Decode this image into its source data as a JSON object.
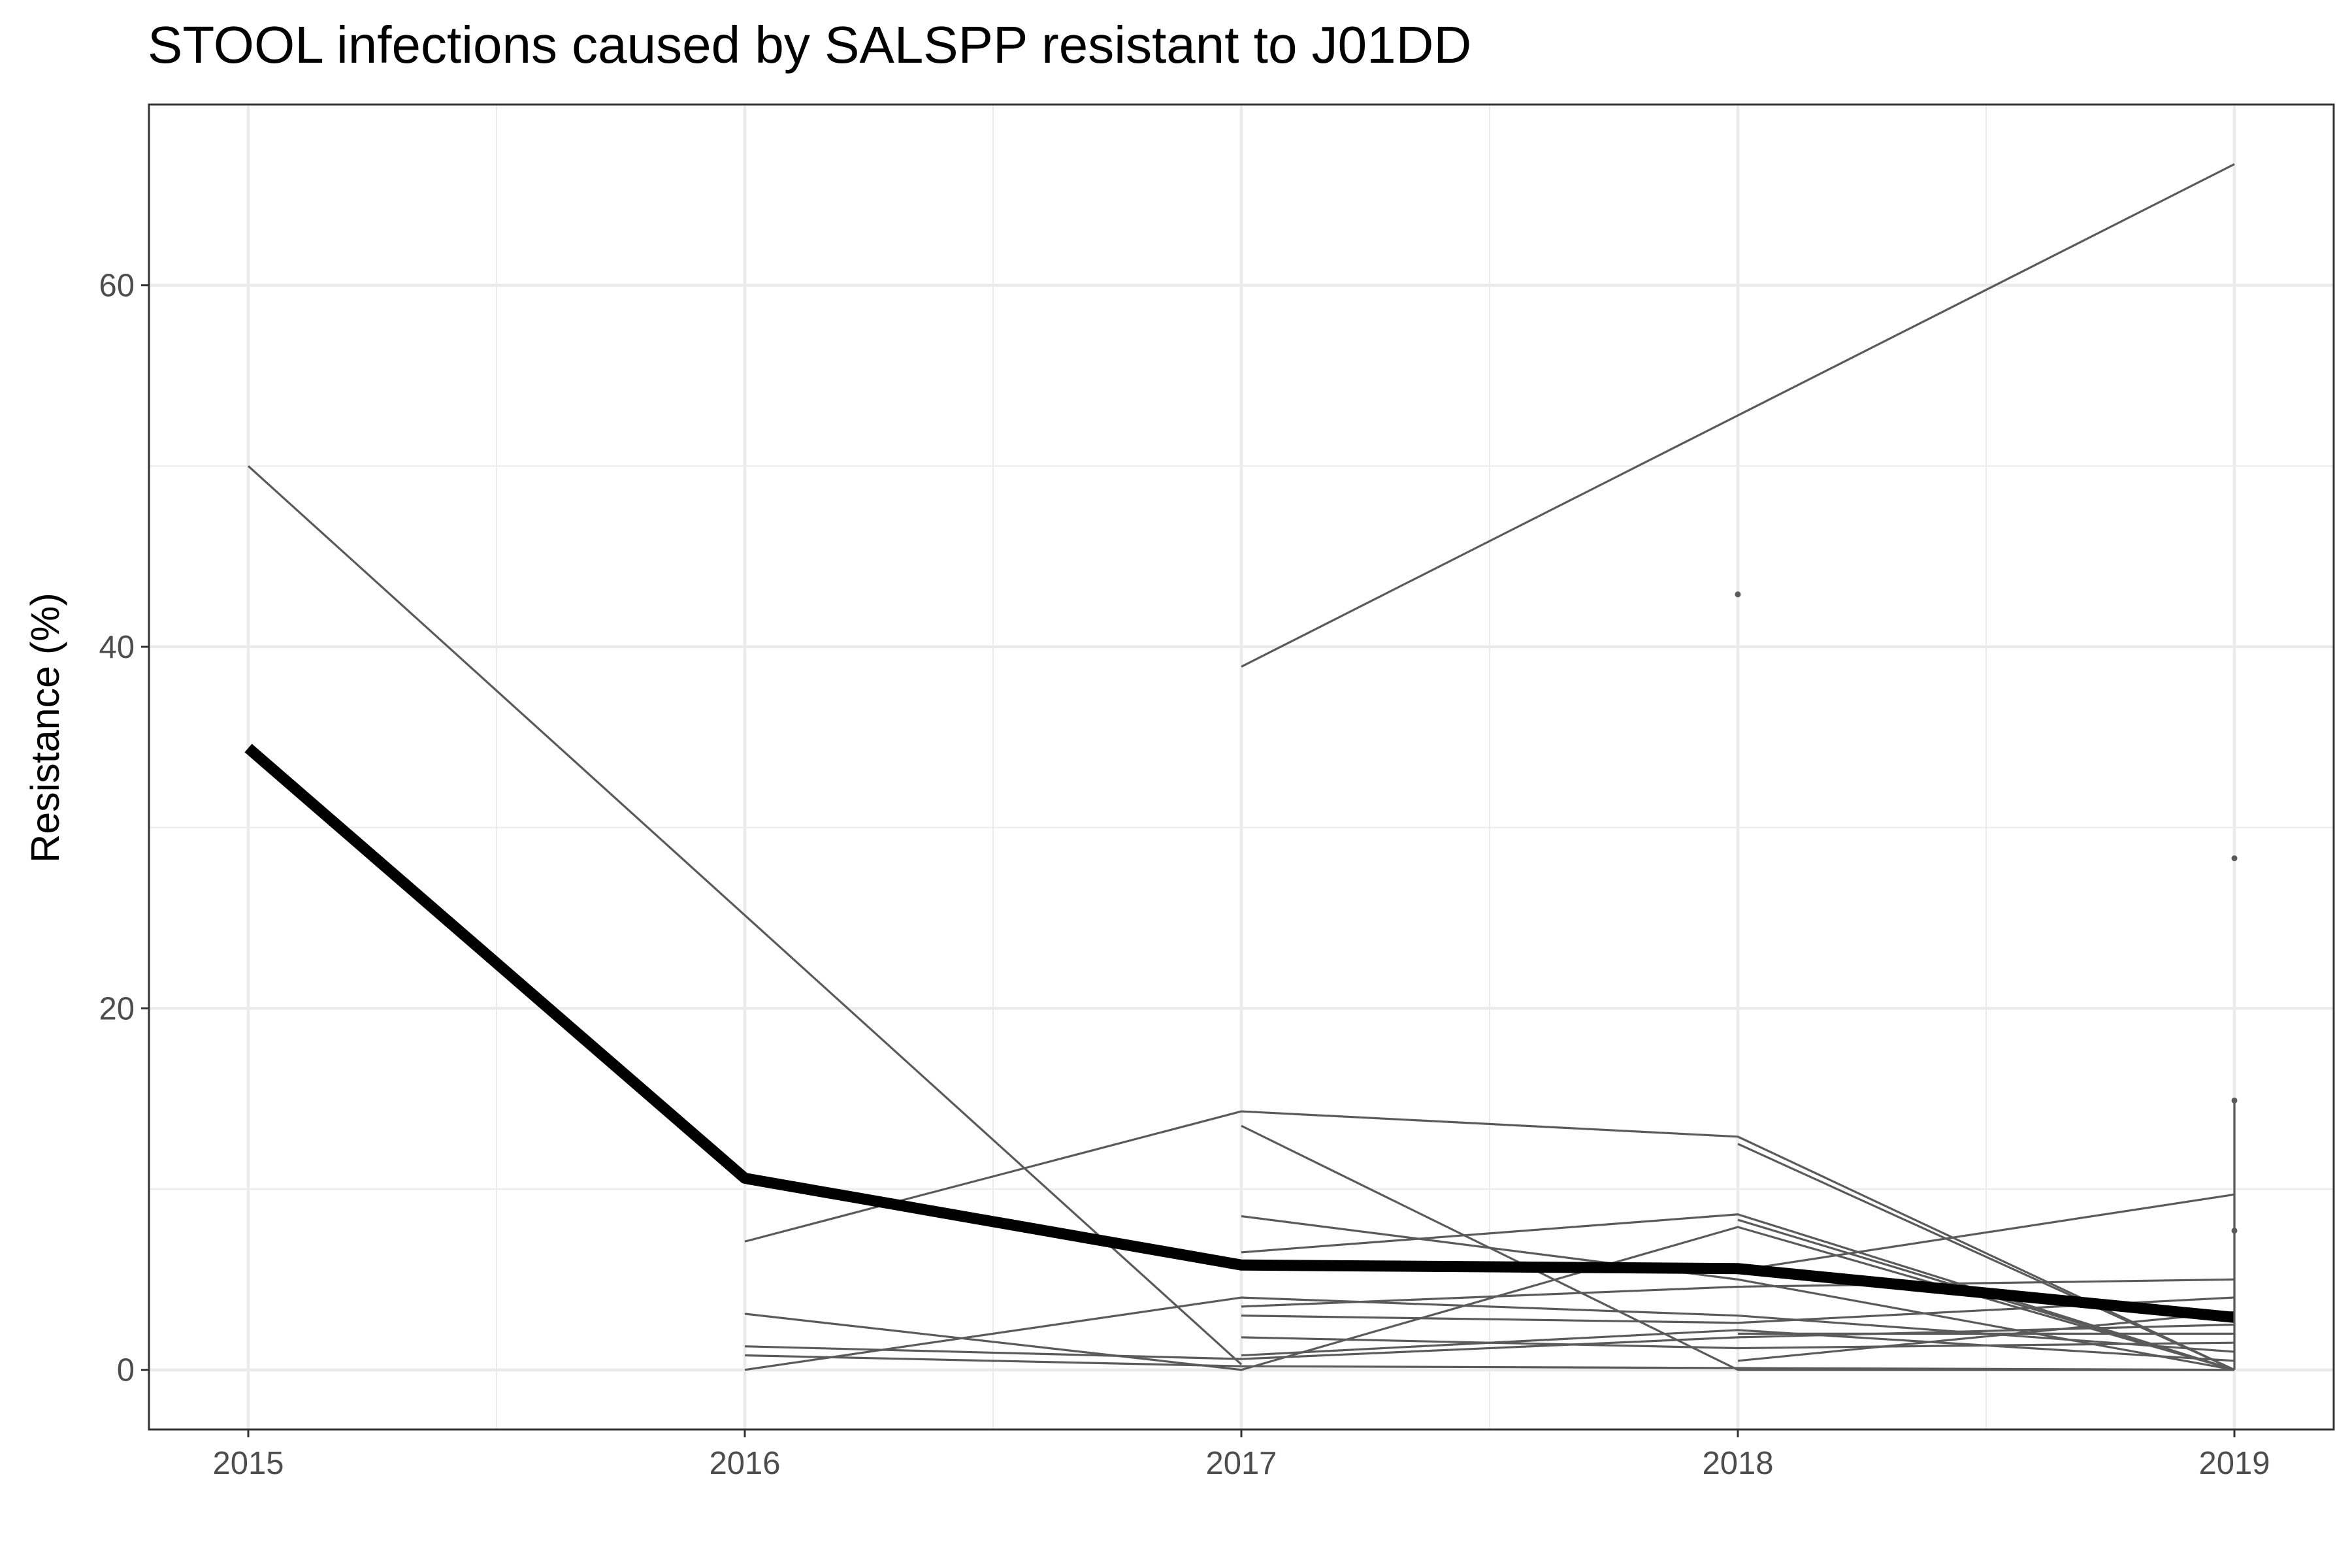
{
  "chart_data": {
    "type": "line",
    "title": "STOOL infections caused by SALSPP resistant to J01DD",
    "xlabel": "",
    "ylabel": "Resistance (%)",
    "x_ticks": [
      "2015",
      "2016",
      "2017",
      "2018",
      "2019"
    ],
    "y_ticks": [
      "0",
      "20",
      "40",
      "60"
    ],
    "xlim": [
      2014.8,
      2019.2
    ],
    "ylim": [
      -3.3,
      70
    ],
    "grid": true,
    "legend": "none",
    "colors": {
      "thin_series": "#5a5a5a",
      "thick_series": "#000000",
      "grid": "#ebebeb",
      "panel_border": "#333333"
    },
    "thick_series": {
      "x": [
        2015,
        2016,
        2017,
        2018,
        2019
      ],
      "values": [
        34.4,
        10.6,
        5.8,
        5.6,
        2.9
      ]
    },
    "series": [
      {
        "x": [
          2015,
          2017
        ],
        "values": [
          50.0,
          0.3
        ]
      },
      {
        "x": [
          2017,
          2019
        ],
        "values": [
          38.9,
          66.7
        ]
      },
      {
        "x": [
          2016,
          2017,
          2018,
          2019
        ],
        "values": [
          7.1,
          14.3,
          12.9,
          0.0
        ]
      },
      {
        "x": [
          2016,
          2017,
          2018,
          2019
        ],
        "values": [
          3.1,
          0.0,
          7.9,
          0.0
        ]
      },
      {
        "x": [
          2016,
          2017,
          2018,
          2019
        ],
        "values": [
          0.0,
          4.0,
          3.0,
          1.0
        ]
      },
      {
        "x": [
          2016,
          2017,
          2018,
          2019
        ],
        "values": [
          1.3,
          0.6,
          1.8,
          2.5
        ]
      },
      {
        "x": [
          2016,
          2017,
          2018,
          2019
        ],
        "values": [
          0.8,
          0.2,
          0.1,
          0.0
        ]
      },
      {
        "x": [
          2017,
          2018,
          2019
        ],
        "values": [
          13.5,
          0.0,
          0.0
        ]
      },
      {
        "x": [
          2017,
          2018,
          2019
        ],
        "values": [
          8.5,
          5.0,
          0.0
        ]
      },
      {
        "x": [
          2017,
          2018,
          2019
        ],
        "values": [
          6.5,
          8.6,
          0.0
        ]
      },
      {
        "x": [
          2017,
          2018,
          2019
        ],
        "values": [
          3.5,
          4.6,
          5.0
        ]
      },
      {
        "x": [
          2017,
          2018,
          2019
        ],
        "values": [
          3.0,
          2.6,
          4.0
        ]
      },
      {
        "x": [
          2017,
          2018,
          2019
        ],
        "values": [
          1.8,
          1.2,
          1.5
        ]
      },
      {
        "x": [
          2017,
          2018,
          2019
        ],
        "values": [
          0.8,
          2.2,
          0.5
        ]
      },
      {
        "x": [
          2018,
          2019
        ],
        "values": [
          12.5,
          0.0
        ]
      },
      {
        "x": [
          2018,
          2019
        ],
        "values": [
          8.3,
          0.0
        ]
      },
      {
        "x": [
          2018,
          2019
        ],
        "values": [
          5.5,
          9.7
        ]
      },
      {
        "x": [
          2018,
          2019
        ],
        "values": [
          2.0,
          2.0
        ]
      },
      {
        "x": [
          2018,
          2019
        ],
        "values": [
          0.5,
          3.2
        ]
      },
      {
        "x": [
          2018,
          2019
        ],
        "values": [
          0.0,
          0.0
        ]
      }
    ],
    "isolated_points": [
      {
        "x": 2018,
        "y": 42.9
      },
      {
        "x": 2019,
        "y": 28.3
      },
      {
        "x": 2019,
        "y": 14.9
      },
      {
        "x": 2019,
        "y": 7.7
      }
    ],
    "vertical_segments": [
      {
        "x": 2019,
        "from": 0.0,
        "to": 14.9
      }
    ]
  }
}
